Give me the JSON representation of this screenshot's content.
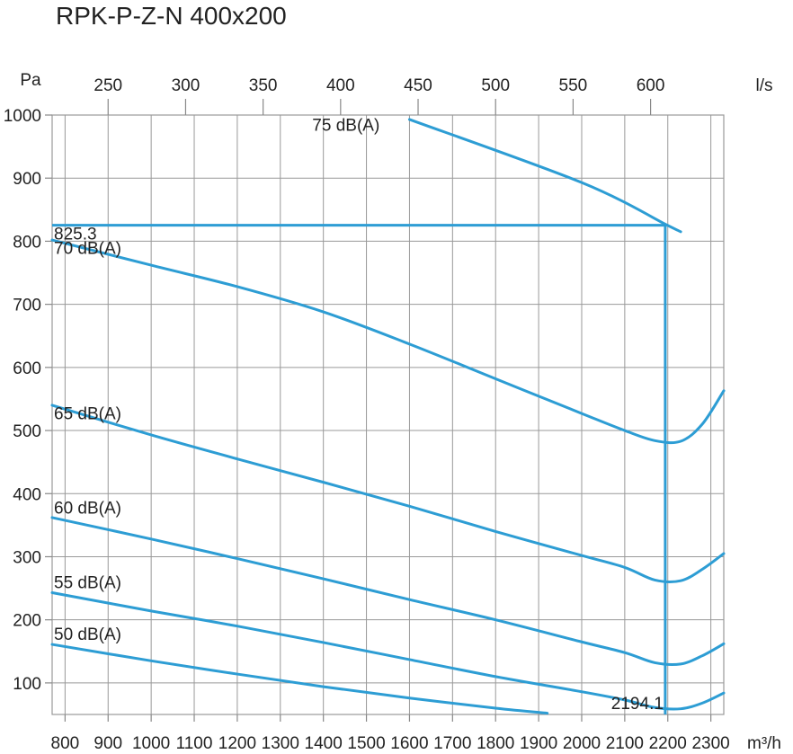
{
  "chart_data": {
    "type": "line",
    "title": "RPK-P-Z-N 400x200",
    "xlabel": "m³/h",
    "x2label": "l/s",
    "ylabel": "Pa",
    "xlim": [
      770,
      2330
    ],
    "ylim": [
      50,
      1000
    ],
    "x_ticks": [
      800,
      900,
      1000,
      1100,
      1200,
      1300,
      1400,
      1500,
      1600,
      1700,
      1800,
      1900,
      2000,
      2100,
      2200,
      2300
    ],
    "x2_ticks": [
      250,
      300,
      350,
      400,
      450,
      500,
      550,
      600
    ],
    "y_ticks": [
      100,
      200,
      300,
      400,
      500,
      600,
      700,
      800,
      900,
      1000
    ],
    "grid": true,
    "line_color": "#2d9dd4",
    "series": [
      {
        "name": "75 dB(A)",
        "points": [
          [
            1600,
            993
          ],
          [
            2000,
            893
          ],
          [
            2200,
            825
          ],
          [
            2230,
            815
          ]
        ]
      },
      {
        "name": "70 dB(A)",
        "points": [
          [
            770,
            802
          ],
          [
            1000,
            762
          ],
          [
            1200,
            728
          ],
          [
            1400,
            688
          ],
          [
            1600,
            637
          ],
          [
            1800,
            582
          ],
          [
            2000,
            527
          ],
          [
            2100,
            500
          ],
          [
            2170,
            484
          ],
          [
            2230,
            483
          ],
          [
            2280,
            510
          ],
          [
            2330,
            563
          ]
        ]
      },
      {
        "name": "65 dB(A)",
        "points": [
          [
            770,
            540
          ],
          [
            1000,
            493
          ],
          [
            1200,
            455
          ],
          [
            1400,
            418
          ],
          [
            1600,
            380
          ],
          [
            1800,
            340
          ],
          [
            2000,
            302
          ],
          [
            2100,
            283
          ],
          [
            2170,
            263
          ],
          [
            2230,
            262
          ],
          [
            2280,
            280
          ],
          [
            2330,
            305
          ]
        ]
      },
      {
        "name": "60 dB(A)",
        "points": [
          [
            770,
            362
          ],
          [
            1000,
            328
          ],
          [
            1200,
            297
          ],
          [
            1400,
            265
          ],
          [
            1600,
            232
          ],
          [
            1800,
            200
          ],
          [
            2000,
            165
          ],
          [
            2100,
            148
          ],
          [
            2170,
            132
          ],
          [
            2230,
            130
          ],
          [
            2280,
            143
          ],
          [
            2330,
            162
          ]
        ]
      },
      {
        "name": "55 dB(A)",
        "points": [
          [
            770,
            243
          ],
          [
            1000,
            214
          ],
          [
            1200,
            190
          ],
          [
            1400,
            164
          ],
          [
            1600,
            137
          ],
          [
            1800,
            110
          ],
          [
            2000,
            86
          ],
          [
            2100,
            73
          ],
          [
            2170,
            61
          ],
          [
            2230,
            59
          ],
          [
            2280,
            68
          ],
          [
            2330,
            84
          ]
        ]
      },
      {
        "name": "50 dB(A)",
        "points": [
          [
            770,
            161
          ],
          [
            1000,
            135
          ],
          [
            1200,
            114
          ],
          [
            1400,
            94
          ],
          [
            1600,
            76
          ],
          [
            1800,
            60
          ],
          [
            1920,
            52
          ]
        ]
      }
    ],
    "label_positions": [
      {
        "name": "75 dB(A)",
        "x": 1370,
        "y": 975
      },
      {
        "name": "70 dB(A)",
        "x": 770,
        "y": 780
      },
      {
        "name": "65 dB(A)",
        "x": 770,
        "y": 518
      },
      {
        "name": "60 dB(A)",
        "x": 770,
        "y": 368
      },
      {
        "name": "55 dB(A)",
        "x": 770,
        "y": 250
      },
      {
        "name": "50 dB(A)",
        "x": 770,
        "y": 168
      }
    ],
    "operating_point": {
      "x": 2194.1,
      "y": 825.3,
      "x_label": "2194.1",
      "y_label": "825.3"
    }
  }
}
